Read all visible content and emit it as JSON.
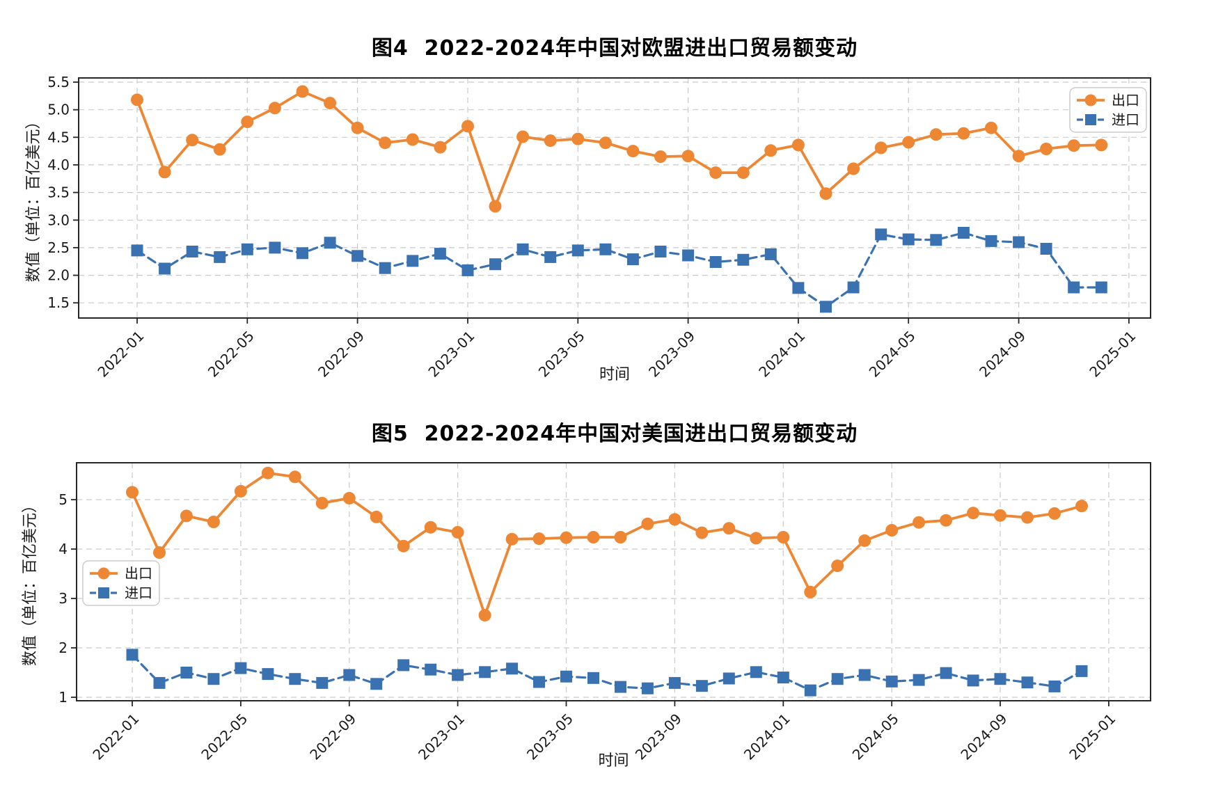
{
  "chart_data": [
    {
      "type": "line",
      "title": "图4  2022-2024年中国对欧盟进出口贸易额变动",
      "xlabel": "时间",
      "ylabel": "数值（单位：百亿美元）",
      "categories": [
        "2022-01",
        "2022-02",
        "2022-03",
        "2022-04",
        "2022-05",
        "2022-06",
        "2022-07",
        "2022-08",
        "2022-09",
        "2022-10",
        "2022-11",
        "2022-12",
        "2023-01",
        "2023-02",
        "2023-03",
        "2023-04",
        "2023-05",
        "2023-06",
        "2023-07",
        "2023-08",
        "2023-09",
        "2023-10",
        "2023-11",
        "2023-12",
        "2024-01",
        "2024-02",
        "2024-03",
        "2024-04",
        "2024-05",
        "2024-06",
        "2024-07",
        "2024-08",
        "2024-09",
        "2024-10",
        "2024-11",
        "2024-12"
      ],
      "x_tick_labels": [
        "2022-01",
        "2022-05",
        "2022-09",
        "2023-01",
        "2023-05",
        "2023-09",
        "2024-01",
        "2024-05",
        "2024-09",
        "2025-01"
      ],
      "x_tick_month_index": [
        0,
        4,
        8,
        12,
        16,
        20,
        24,
        28,
        32,
        36
      ],
      "yticks": [
        1.5,
        2.0,
        2.5,
        3.0,
        3.5,
        4.0,
        4.5,
        5.0,
        5.5
      ],
      "ytick_decimals": 1,
      "ylim": [
        1.2,
        5.58
      ],
      "grid": true,
      "legend_position": "upper right",
      "series": [
        {
          "name": "出口",
          "color": "#ed8733",
          "marker": "circle",
          "line_style": "solid",
          "values": [
            5.18,
            3.87,
            4.45,
            4.28,
            4.78,
            5.03,
            5.33,
            5.12,
            4.67,
            4.4,
            4.46,
            4.32,
            4.7,
            3.25,
            4.51,
            4.44,
            4.47,
            4.4,
            4.25,
            4.15,
            4.16,
            3.86,
            3.86,
            4.26,
            4.36,
            3.48,
            3.93,
            4.31,
            4.41,
            4.55,
            4.57,
            4.67,
            4.16,
            4.29,
            4.35,
            4.36
          ]
        },
        {
          "name": "进口",
          "color": "#3a72b1",
          "marker": "square",
          "line_style": "dashed",
          "values": [
            2.45,
            2.12,
            2.43,
            2.33,
            2.47,
            2.5,
            2.4,
            2.59,
            2.35,
            2.13,
            2.26,
            2.39,
            2.09,
            2.2,
            2.47,
            2.33,
            2.45,
            2.47,
            2.29,
            2.43,
            2.36,
            2.24,
            2.28,
            2.38,
            1.77,
            1.43,
            1.78,
            2.74,
            2.65,
            2.64,
            2.77,
            2.62,
            2.6,
            2.48,
            1.78,
            1.78
          ]
        }
      ]
    },
    {
      "type": "line",
      "title": "图5  2022-2024年中国对美国进出口贸易额变动",
      "xlabel": "时间",
      "ylabel": "数值（单位：百亿美元）",
      "categories": [
        "2022-01",
        "2022-02",
        "2022-03",
        "2022-04",
        "2022-05",
        "2022-06",
        "2022-07",
        "2022-08",
        "2022-09",
        "2022-10",
        "2022-11",
        "2022-12",
        "2023-01",
        "2023-02",
        "2023-03",
        "2023-04",
        "2023-05",
        "2023-06",
        "2023-07",
        "2023-08",
        "2023-09",
        "2023-10",
        "2023-11",
        "2023-12",
        "2024-01",
        "2024-02",
        "2024-03",
        "2024-04",
        "2024-05",
        "2024-06",
        "2024-07",
        "2024-08",
        "2024-09",
        "2024-10",
        "2024-11",
        "2024-12"
      ],
      "x_tick_labels": [
        "2022-01",
        "2022-05",
        "2022-09",
        "2023-01",
        "2023-05",
        "2023-09",
        "2024-01",
        "2024-05",
        "2024-09",
        "2025-01"
      ],
      "x_tick_month_index": [
        0,
        4,
        8,
        12,
        16,
        20,
        24,
        28,
        32,
        36
      ],
      "yticks": [
        1,
        2,
        3,
        4,
        5
      ],
      "ytick_decimals": 0,
      "ylim": [
        0.93,
        5.75
      ],
      "grid": true,
      "legend_position": "center left",
      "series": [
        {
          "name": "出口",
          "color": "#ed8733",
          "marker": "circle",
          "line_style": "solid",
          "values": [
            5.15,
            3.93,
            4.67,
            4.55,
            5.17,
            5.54,
            5.46,
            4.93,
            5.03,
            4.65,
            4.06,
            4.44,
            4.34,
            2.66,
            4.2,
            4.21,
            4.23,
            4.24,
            4.24,
            4.51,
            4.6,
            4.33,
            4.42,
            4.22,
            4.24,
            3.13,
            3.66,
            4.17,
            4.38,
            4.54,
            4.58,
            4.73,
            4.68,
            4.64,
            4.72,
            4.87
          ]
        },
        {
          "name": "进口",
          "color": "#3a72b1",
          "marker": "square",
          "line_style": "dashed",
          "values": [
            1.86,
            1.29,
            1.5,
            1.37,
            1.59,
            1.47,
            1.37,
            1.29,
            1.45,
            1.27,
            1.65,
            1.56,
            1.45,
            1.51,
            1.58,
            1.31,
            1.42,
            1.39,
            1.21,
            1.18,
            1.29,
            1.23,
            1.38,
            1.51,
            1.4,
            1.14,
            1.37,
            1.45,
            1.32,
            1.35,
            1.49,
            1.34,
            1.37,
            1.3,
            1.22,
            1.53
          ]
        }
      ]
    }
  ]
}
